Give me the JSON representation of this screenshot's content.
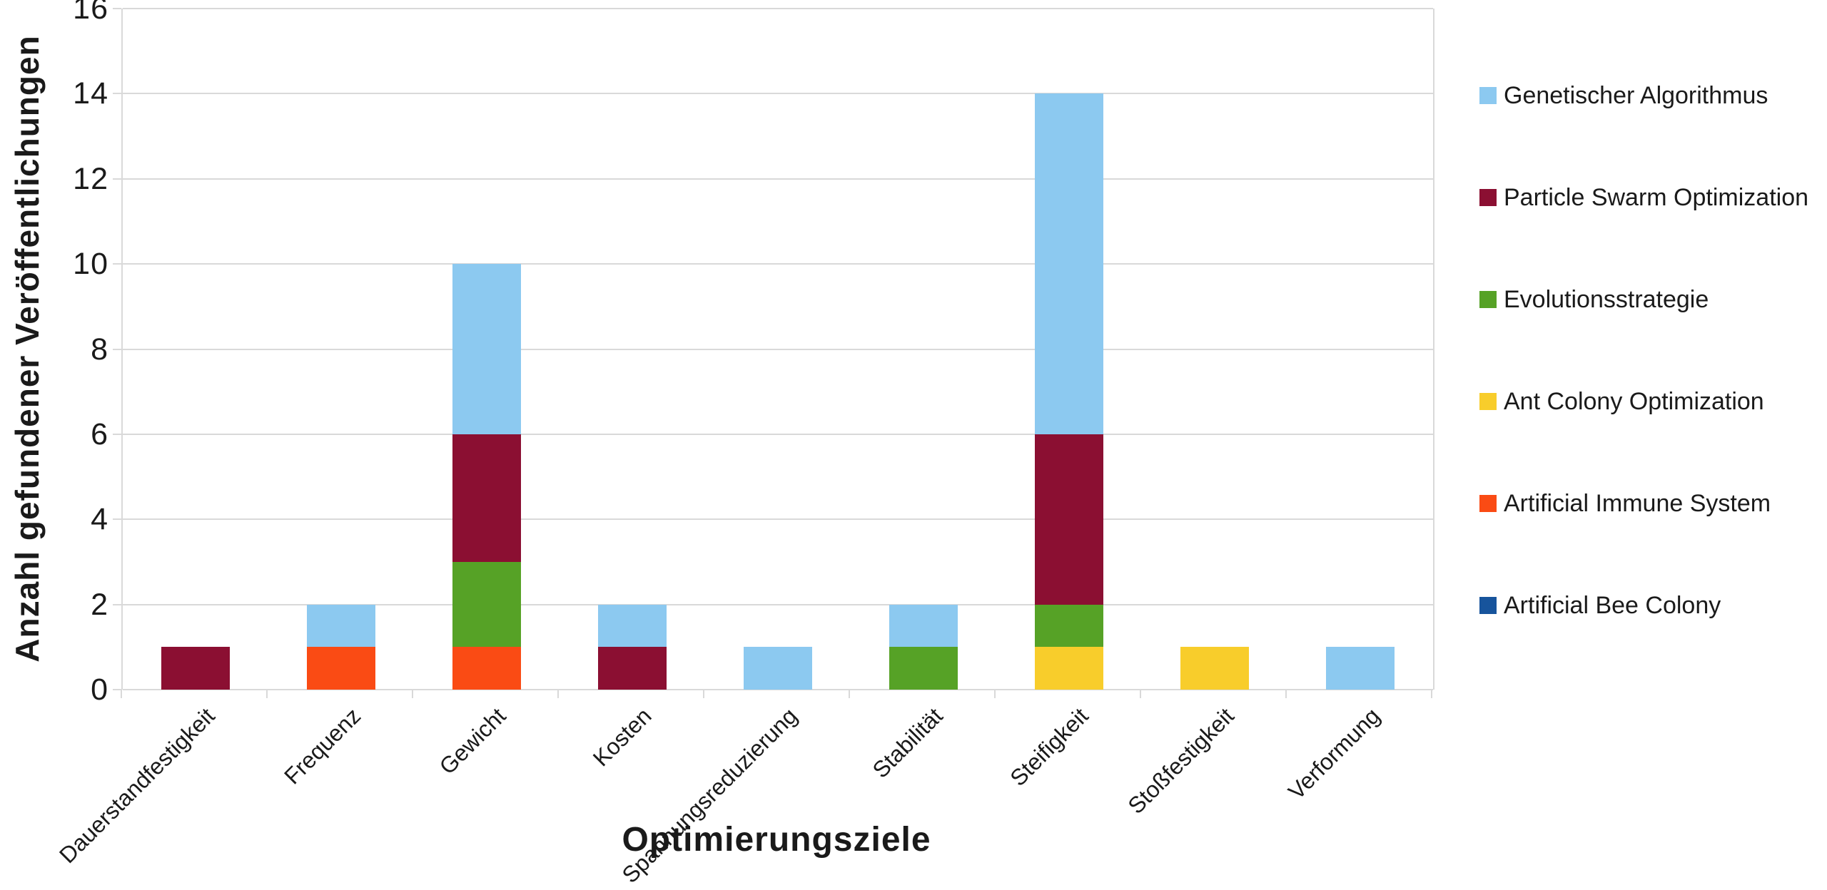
{
  "chart_data": {
    "type": "bar",
    "stacked": true,
    "title": "",
    "xlabel": "Optimierungsziele",
    "ylabel": "Anzahl gefundener Veröffentlichungen",
    "ylim": [
      0,
      16
    ],
    "ytick_step": 2,
    "grid": true,
    "legend_position": "right",
    "stacking_order_note": "bars stack bottom-to-top in reverse legend order",
    "categories": [
      "Dauerstandfestigkeit",
      "Frequenz",
      "Gewicht",
      "Kosten",
      "Spannungsreduzierung",
      "Stabilität",
      "Steifigkeit",
      "Stoßfestigkeit",
      "Verformung"
    ],
    "series": [
      {
        "name": "Genetischer Algorithmus",
        "color": "#8cc9f0",
        "values": [
          0,
          1,
          4,
          1,
          1,
          1,
          8,
          0,
          1
        ]
      },
      {
        "name": "Particle Swarm Optimization",
        "color": "#8b0f32",
        "values": [
          1,
          0,
          3,
          1,
          0,
          0,
          4,
          0,
          0
        ]
      },
      {
        "name": "Evolutionsstrategie",
        "color": "#56a226",
        "values": [
          0,
          0,
          2,
          0,
          0,
          1,
          1,
          0,
          0
        ]
      },
      {
        "name": "Ant Colony Optimization",
        "color": "#f8cd2b",
        "values": [
          0,
          0,
          0,
          0,
          0,
          0,
          1,
          1,
          0
        ]
      },
      {
        "name": "Artificial Immune System",
        "color": "#fa4b14",
        "values": [
          0,
          1,
          1,
          0,
          0,
          0,
          0,
          0,
          0
        ]
      },
      {
        "name": "Artificial Bee Colony",
        "color": "#17549c",
        "values": [
          0,
          0,
          0,
          0,
          0,
          0,
          0,
          0,
          0
        ]
      }
    ],
    "colors": {
      "gridline": "#d9d9d9",
      "text": "#1a1a1a",
      "background": "#ffffff"
    }
  }
}
